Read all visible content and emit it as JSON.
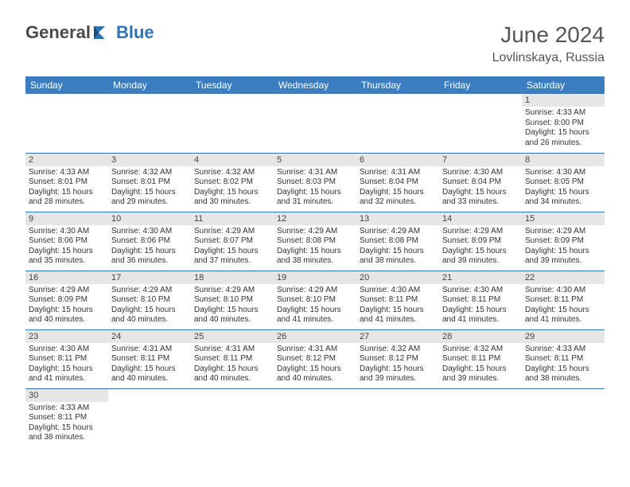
{
  "brand": {
    "part1": "General",
    "part2": "Blue"
  },
  "title": "June 2024",
  "location": "Lovlinskaya, Russia",
  "colors": {
    "header_bg": "#3a7ec1",
    "accent": "#2e75b6",
    "daybar": "#e6e6e6",
    "text": "#333333",
    "title_text": "#555555"
  },
  "weekdays": [
    "Sunday",
    "Monday",
    "Tuesday",
    "Wednesday",
    "Thursday",
    "Friday",
    "Saturday"
  ],
  "weeks": [
    [
      null,
      null,
      null,
      null,
      null,
      null,
      {
        "n": "1",
        "sr": "Sunrise: 4:33 AM",
        "ss": "Sunset: 8:00 PM",
        "d1": "Daylight: 15 hours",
        "d2": "and 26 minutes."
      }
    ],
    [
      {
        "n": "2",
        "sr": "Sunrise: 4:33 AM",
        "ss": "Sunset: 8:01 PM",
        "d1": "Daylight: 15 hours",
        "d2": "and 28 minutes."
      },
      {
        "n": "3",
        "sr": "Sunrise: 4:32 AM",
        "ss": "Sunset: 8:01 PM",
        "d1": "Daylight: 15 hours",
        "d2": "and 29 minutes."
      },
      {
        "n": "4",
        "sr": "Sunrise: 4:32 AM",
        "ss": "Sunset: 8:02 PM",
        "d1": "Daylight: 15 hours",
        "d2": "and 30 minutes."
      },
      {
        "n": "5",
        "sr": "Sunrise: 4:31 AM",
        "ss": "Sunset: 8:03 PM",
        "d1": "Daylight: 15 hours",
        "d2": "and 31 minutes."
      },
      {
        "n": "6",
        "sr": "Sunrise: 4:31 AM",
        "ss": "Sunset: 8:04 PM",
        "d1": "Daylight: 15 hours",
        "d2": "and 32 minutes."
      },
      {
        "n": "7",
        "sr": "Sunrise: 4:30 AM",
        "ss": "Sunset: 8:04 PM",
        "d1": "Daylight: 15 hours",
        "d2": "and 33 minutes."
      },
      {
        "n": "8",
        "sr": "Sunrise: 4:30 AM",
        "ss": "Sunset: 8:05 PM",
        "d1": "Daylight: 15 hours",
        "d2": "and 34 minutes."
      }
    ],
    [
      {
        "n": "9",
        "sr": "Sunrise: 4:30 AM",
        "ss": "Sunset: 8:06 PM",
        "d1": "Daylight: 15 hours",
        "d2": "and 35 minutes."
      },
      {
        "n": "10",
        "sr": "Sunrise: 4:30 AM",
        "ss": "Sunset: 8:06 PM",
        "d1": "Daylight: 15 hours",
        "d2": "and 36 minutes."
      },
      {
        "n": "11",
        "sr": "Sunrise: 4:29 AM",
        "ss": "Sunset: 8:07 PM",
        "d1": "Daylight: 15 hours",
        "d2": "and 37 minutes."
      },
      {
        "n": "12",
        "sr": "Sunrise: 4:29 AM",
        "ss": "Sunset: 8:08 PM",
        "d1": "Daylight: 15 hours",
        "d2": "and 38 minutes."
      },
      {
        "n": "13",
        "sr": "Sunrise: 4:29 AM",
        "ss": "Sunset: 8:08 PM",
        "d1": "Daylight: 15 hours",
        "d2": "and 38 minutes."
      },
      {
        "n": "14",
        "sr": "Sunrise: 4:29 AM",
        "ss": "Sunset: 8:09 PM",
        "d1": "Daylight: 15 hours",
        "d2": "and 39 minutes."
      },
      {
        "n": "15",
        "sr": "Sunrise: 4:29 AM",
        "ss": "Sunset: 8:09 PM",
        "d1": "Daylight: 15 hours",
        "d2": "and 39 minutes."
      }
    ],
    [
      {
        "n": "16",
        "sr": "Sunrise: 4:29 AM",
        "ss": "Sunset: 8:09 PM",
        "d1": "Daylight: 15 hours",
        "d2": "and 40 minutes."
      },
      {
        "n": "17",
        "sr": "Sunrise: 4:29 AM",
        "ss": "Sunset: 8:10 PM",
        "d1": "Daylight: 15 hours",
        "d2": "and 40 minutes."
      },
      {
        "n": "18",
        "sr": "Sunrise: 4:29 AM",
        "ss": "Sunset: 8:10 PM",
        "d1": "Daylight: 15 hours",
        "d2": "and 40 minutes."
      },
      {
        "n": "19",
        "sr": "Sunrise: 4:29 AM",
        "ss": "Sunset: 8:10 PM",
        "d1": "Daylight: 15 hours",
        "d2": "and 41 minutes."
      },
      {
        "n": "20",
        "sr": "Sunrise: 4:30 AM",
        "ss": "Sunset: 8:11 PM",
        "d1": "Daylight: 15 hours",
        "d2": "and 41 minutes."
      },
      {
        "n": "21",
        "sr": "Sunrise: 4:30 AM",
        "ss": "Sunset: 8:11 PM",
        "d1": "Daylight: 15 hours",
        "d2": "and 41 minutes."
      },
      {
        "n": "22",
        "sr": "Sunrise: 4:30 AM",
        "ss": "Sunset: 8:11 PM",
        "d1": "Daylight: 15 hours",
        "d2": "and 41 minutes."
      }
    ],
    [
      {
        "n": "23",
        "sr": "Sunrise: 4:30 AM",
        "ss": "Sunset: 8:11 PM",
        "d1": "Daylight: 15 hours",
        "d2": "and 41 minutes."
      },
      {
        "n": "24",
        "sr": "Sunrise: 4:31 AM",
        "ss": "Sunset: 8:11 PM",
        "d1": "Daylight: 15 hours",
        "d2": "and 40 minutes."
      },
      {
        "n": "25",
        "sr": "Sunrise: 4:31 AM",
        "ss": "Sunset: 8:11 PM",
        "d1": "Daylight: 15 hours",
        "d2": "and 40 minutes."
      },
      {
        "n": "26",
        "sr": "Sunrise: 4:31 AM",
        "ss": "Sunset: 8:12 PM",
        "d1": "Daylight: 15 hours",
        "d2": "and 40 minutes."
      },
      {
        "n": "27",
        "sr": "Sunrise: 4:32 AM",
        "ss": "Sunset: 8:12 PM",
        "d1": "Daylight: 15 hours",
        "d2": "and 39 minutes."
      },
      {
        "n": "28",
        "sr": "Sunrise: 4:32 AM",
        "ss": "Sunset: 8:11 PM",
        "d1": "Daylight: 15 hours",
        "d2": "and 39 minutes."
      },
      {
        "n": "29",
        "sr": "Sunrise: 4:33 AM",
        "ss": "Sunset: 8:11 PM",
        "d1": "Daylight: 15 hours",
        "d2": "and 38 minutes."
      }
    ],
    [
      {
        "n": "30",
        "sr": "Sunrise: 4:33 AM",
        "ss": "Sunset: 8:11 PM",
        "d1": "Daylight: 15 hours",
        "d2": "and 38 minutes."
      },
      null,
      null,
      null,
      null,
      null,
      null
    ]
  ]
}
